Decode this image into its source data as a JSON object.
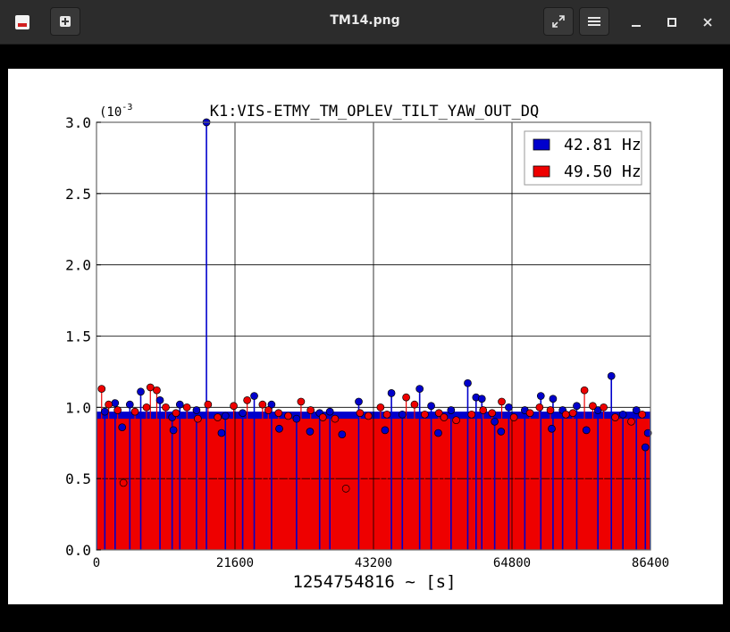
{
  "window": {
    "title": "TM14.png",
    "controls": [
      "fullscreen-icon",
      "menu-icon",
      "minimize-icon",
      "maximize-icon",
      "close-icon"
    ]
  },
  "chart_data": {
    "type": "scatter",
    "title": "K1:VIS-ETMY_TM_OPLEV_TILT_YAW_OUT_DQ",
    "xlabel": "1254754816 ~ [s]",
    "ylabel": "",
    "y_exponent_label": "(10^-3",
    "xlim": [
      0,
      86400
    ],
    "ylim": [
      0.0,
      3.0
    ],
    "x_ticks": [
      "0",
      "21600",
      "43200",
      "64800",
      "86400"
    ],
    "y_ticks": [
      "0.0",
      "0.5",
      "1.0",
      "1.5",
      "2.0",
      "2.5",
      "3.0"
    ],
    "grid": true,
    "legend_position": "top-right",
    "series": [
      {
        "name": "42.81 Hz",
        "color": "#0000cc",
        "x": [
          1300,
          2900,
          5200,
          6900,
          9900,
          11800,
          13000,
          15600,
          17150,
          20100,
          22800,
          24600,
          27300,
          31200,
          34800,
          36400,
          40900,
          46000,
          47700,
          50400,
          52200,
          55300,
          57900,
          59200,
          60100,
          62100,
          64300,
          66800,
          69300,
          71200,
          72700,
          74900,
          78200,
          80300,
          82100,
          84200,
          85600
        ],
        "y": [
          0.97,
          1.03,
          1.02,
          1.11,
          1.05,
          0.93,
          1.02,
          0.98,
          3.0,
          0.94,
          0.96,
          1.08,
          1.02,
          0.92,
          0.96,
          0.97,
          1.04,
          1.1,
          0.95,
          1.13,
          1.01,
          0.98,
          1.17,
          1.07,
          1.06,
          0.9,
          1.0,
          0.98,
          1.08,
          1.06,
          0.98,
          1.01,
          0.98,
          1.22,
          0.95,
          0.98,
          0.72
        ],
        "baseline_values": [
          0.86,
          0.84,
          0.82,
          0.85,
          0.83,
          0.81,
          0.84,
          0.82,
          0.83,
          0.85,
          0.84,
          0.82
        ],
        "baseline_x": [
          4000,
          12000,
          19500,
          28500,
          33300,
          38300,
          45000,
          53300,
          63100,
          71000,
          76400,
          86000
        ]
      },
      {
        "name": "49.50 Hz",
        "color": "#ee0000",
        "x": [
          800,
          1900,
          3300,
          4200,
          6000,
          7800,
          8400,
          9400,
          10800,
          12400,
          14100,
          15800,
          17400,
          18900,
          21400,
          23500,
          25900,
          26800,
          28400,
          29900,
          31900,
          33400,
          35300,
          37200,
          38900,
          41100,
          42400,
          44300,
          45300,
          48300,
          49600,
          51200,
          53400,
          54200,
          56100,
          58500,
          60300,
          61700,
          63200,
          65100,
          67600,
          69100,
          70800,
          73200,
          74300,
          76100,
          77400,
          79100,
          80900,
          83400,
          85100
        ],
        "y": [
          1.13,
          1.02,
          0.98,
          0.47,
          0.97,
          1.0,
          1.14,
          1.12,
          1.0,
          0.96,
          1.0,
          0.92,
          1.02,
          0.93,
          1.01,
          1.05,
          1.02,
          0.98,
          0.96,
          0.94,
          1.04,
          0.98,
          0.93,
          0.92,
          0.43,
          0.96,
          0.94,
          1.0,
          0.95,
          1.07,
          1.02,
          0.95,
          0.96,
          0.93,
          0.91,
          0.95,
          0.98,
          0.96,
          1.04,
          0.93,
          0.96,
          1.0,
          0.98,
          0.95,
          0.96,
          1.12,
          1.01,
          1.0,
          0.93,
          0.9,
          0.95
        ],
        "fill_level": 0.97
      }
    ]
  }
}
